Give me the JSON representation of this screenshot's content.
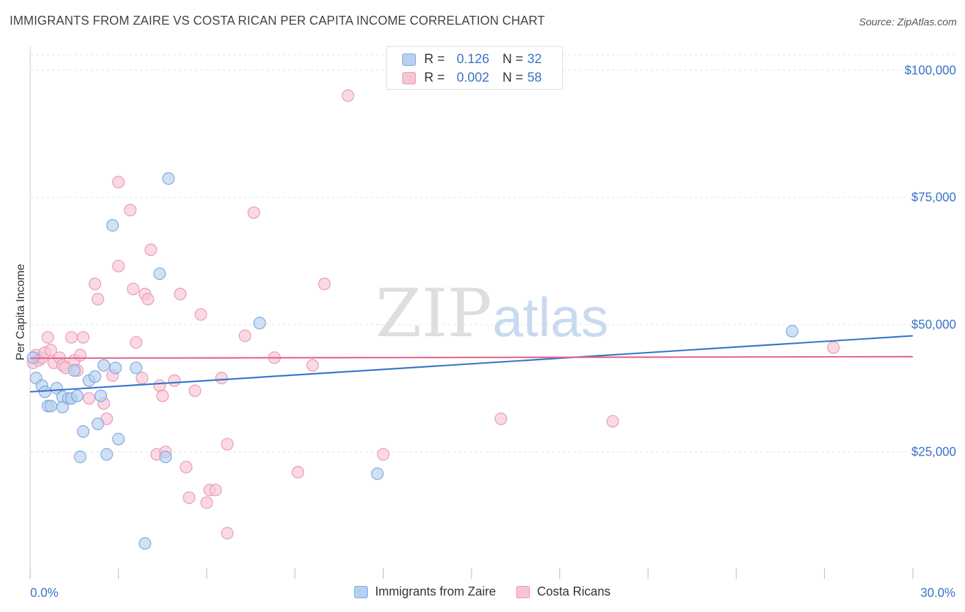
{
  "header": {
    "title": "IMMIGRANTS FROM ZAIRE VS COSTA RICAN PER CAPITA INCOME CORRELATION CHART",
    "source": "Source: ZipAtlas.com"
  },
  "legend": {
    "rows": [
      {
        "r_label": "R =",
        "r_value": "0.126",
        "n_label": "N =",
        "n_value": "32"
      },
      {
        "r_label": "R =",
        "r_value": "0.002",
        "n_label": "N =",
        "n_value": "58"
      }
    ]
  },
  "watermark": {
    "part1": "ZIP",
    "part2": "atlas"
  },
  "colors": {
    "blue_fill": "#b7d0f0",
    "blue_stroke": "#7fa8dc",
    "blue_line": "#3474cc",
    "pink_fill": "#f7c4d4",
    "pink_stroke": "#e89ab5",
    "pink_line": "#e4668f",
    "axis_text": "#3b73c8"
  },
  "chart_data": {
    "type": "scatter",
    "title": "IMMIGRANTS FROM ZAIRE VS COSTA RICAN PER CAPITA INCOME CORRELATION CHART",
    "xlabel": "",
    "ylabel": "Per Capita Income",
    "xlim": [
      0,
      30
    ],
    "ylim": [
      0,
      103000
    ],
    "x_tick_labels": {
      "min": "0.0%",
      "max": "30.0%"
    },
    "y_ticks": [
      {
        "value": 25000,
        "label": "$25,000"
      },
      {
        "value": 50000,
        "label": "$50,000"
      },
      {
        "value": 75000,
        "label": "$75,000"
      },
      {
        "value": 100000,
        "label": "$100,000"
      }
    ],
    "grid": true,
    "series": [
      {
        "name": "Immigrants from Zaire",
        "color": "blue",
        "trend": {
          "x": [
            0,
            30
          ],
          "y": [
            36800,
            47800
          ]
        },
        "points": [
          [
            0.1,
            43500
          ],
          [
            0.2,
            39500
          ],
          [
            0.4,
            38000
          ],
          [
            0.5,
            36800
          ],
          [
            0.6,
            34000
          ],
          [
            0.7,
            34000
          ],
          [
            0.9,
            37500
          ],
          [
            1.1,
            35800
          ],
          [
            1.1,
            33800
          ],
          [
            1.3,
            35500
          ],
          [
            1.4,
            35500
          ],
          [
            1.5,
            41000
          ],
          [
            1.6,
            36000
          ],
          [
            1.8,
            29000
          ],
          [
            1.7,
            24000
          ],
          [
            2.0,
            39000
          ],
          [
            2.2,
            39800
          ],
          [
            2.3,
            30500
          ],
          [
            2.4,
            36000
          ],
          [
            2.5,
            42000
          ],
          [
            2.6,
            24500
          ],
          [
            2.8,
            69500
          ],
          [
            2.9,
            41500
          ],
          [
            3.0,
            27500
          ],
          [
            3.6,
            41500
          ],
          [
            3.9,
            7000
          ],
          [
            4.4,
            60000
          ],
          [
            4.6,
            24000
          ],
          [
            4.7,
            78700
          ],
          [
            7.8,
            50300
          ],
          [
            11.8,
            20700
          ],
          [
            25.9,
            48700
          ]
        ]
      },
      {
        "name": "Costa Ricans",
        "color": "pink",
        "trend": {
          "x": [
            0,
            30
          ],
          "y": [
            43400,
            43700
          ]
        },
        "points": [
          [
            0.1,
            42500
          ],
          [
            0.2,
            44000
          ],
          [
            0.3,
            43000
          ],
          [
            0.4,
            43500
          ],
          [
            0.5,
            44500
          ],
          [
            0.6,
            47500
          ],
          [
            0.7,
            45000
          ],
          [
            0.8,
            42500
          ],
          [
            1.0,
            43500
          ],
          [
            1.1,
            42000
          ],
          [
            1.2,
            41500
          ],
          [
            1.4,
            47500
          ],
          [
            1.5,
            43000
          ],
          [
            1.6,
            41000
          ],
          [
            1.7,
            44000
          ],
          [
            1.8,
            47500
          ],
          [
            2.0,
            35500
          ],
          [
            2.2,
            58000
          ],
          [
            2.3,
            55000
          ],
          [
            2.5,
            34500
          ],
          [
            2.6,
            31500
          ],
          [
            2.8,
            40000
          ],
          [
            3.0,
            61500
          ],
          [
            3.0,
            78000
          ],
          [
            3.4,
            72500
          ],
          [
            3.5,
            57000
          ],
          [
            3.6,
            46500
          ],
          [
            3.8,
            39500
          ],
          [
            3.9,
            56000
          ],
          [
            4.0,
            55000
          ],
          [
            4.1,
            64700
          ],
          [
            4.3,
            24500
          ],
          [
            4.4,
            38000
          ],
          [
            4.5,
            36000
          ],
          [
            4.6,
            25000
          ],
          [
            4.9,
            39000
          ],
          [
            5.1,
            56000
          ],
          [
            5.3,
            22000
          ],
          [
            5.4,
            16000
          ],
          [
            5.6,
            37000
          ],
          [
            5.8,
            52000
          ],
          [
            6.0,
            15000
          ],
          [
            6.1,
            17500
          ],
          [
            6.3,
            17500
          ],
          [
            6.5,
            39500
          ],
          [
            6.7,
            9000
          ],
          [
            6.7,
            26500
          ],
          [
            7.3,
            47800
          ],
          [
            7.6,
            72000
          ],
          [
            8.3,
            43500
          ],
          [
            9.1,
            21000
          ],
          [
            9.6,
            42000
          ],
          [
            10.0,
            58000
          ],
          [
            10.8,
            95000
          ],
          [
            12.0,
            24500
          ],
          [
            16.0,
            31500
          ],
          [
            19.8,
            31000
          ],
          [
            27.3,
            45500
          ]
        ]
      }
    ]
  },
  "bottom_legend": {
    "items": [
      {
        "label": "Immigrants from Zaire"
      },
      {
        "label": "Costa Ricans"
      }
    ]
  }
}
